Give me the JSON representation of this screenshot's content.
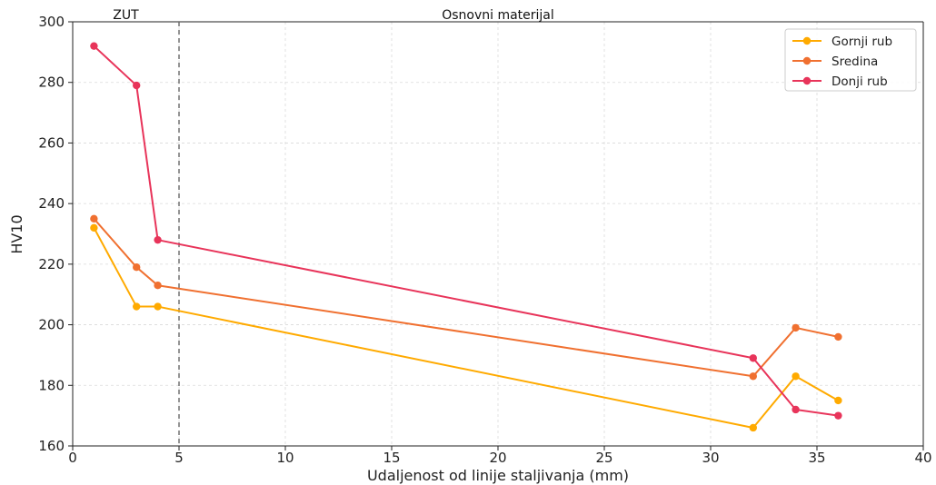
{
  "chart_data": {
    "type": "line",
    "title": "",
    "xlabel": "Udaljenost od linije staljivanja (mm)",
    "ylabel": "HV10",
    "xlim": [
      0,
      40
    ],
    "ylim": [
      160,
      300
    ],
    "xticks": [
      0,
      5,
      10,
      15,
      20,
      25,
      30,
      35,
      40
    ],
    "yticks": [
      160,
      180,
      200,
      220,
      240,
      260,
      280,
      300
    ],
    "grid": true,
    "legend_position": "top-right",
    "vline": {
      "x": 5,
      "style": "dashed",
      "color": "#666666"
    },
    "annotations": [
      {
        "text": "ZUT",
        "x": 2.5,
        "y": 300
      },
      {
        "text": "Osnovni materijal",
        "x": 20,
        "y": 300
      }
    ],
    "x": [
      1,
      3,
      4,
      32,
      34,
      36
    ],
    "series": [
      {
        "name": "Gornji rub",
        "color": "#FFAA00",
        "values": [
          232,
          206,
          206,
          166,
          183,
          175
        ]
      },
      {
        "name": "Sredina",
        "color": "#F07030",
        "values": [
          235,
          219,
          213,
          183,
          199,
          196
        ]
      },
      {
        "name": "Donji rub",
        "color": "#E8345A",
        "values": [
          292,
          279,
          228,
          189,
          172,
          170
        ]
      }
    ]
  }
}
